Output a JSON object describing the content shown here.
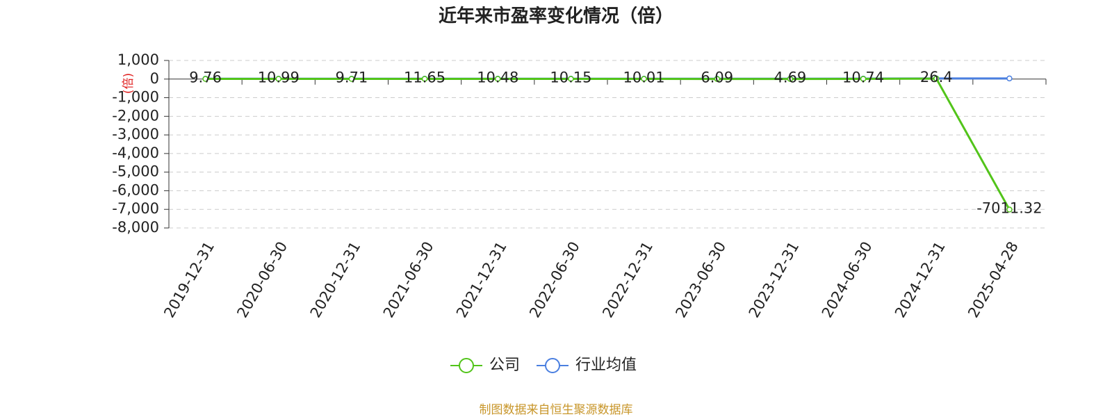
{
  "chart_data": {
    "type": "line",
    "title": "近年来市盈率变化情况（倍）",
    "y_label": "(倍)",
    "source": "制图数据来自恒生聚源数据库",
    "categories": [
      "2019-12-31",
      "2020-06-30",
      "2020-12-31",
      "2021-06-30",
      "2021-12-31",
      "2022-06-30",
      "2022-12-31",
      "2023-06-30",
      "2023-12-31",
      "2024-06-30",
      "2024-12-31",
      "2025-04-28"
    ],
    "series": [
      {
        "name": "公司",
        "color": "#52c41a",
        "values": [
          9.76,
          10.99,
          9.71,
          11.65,
          10.48,
          10.15,
          10.01,
          6.09,
          4.69,
          10.74,
          26.4,
          -7011.32
        ]
      },
      {
        "name": "行业均值",
        "color": "#4a7fe0",
        "values": [
          20,
          20,
          20,
          20,
          20,
          20,
          20,
          20,
          20,
          25,
          35,
          35
        ]
      }
    ],
    "ylim": [
      -8000,
      1000
    ],
    "yticks": [
      {
        "value": 1000,
        "label": "1,000"
      },
      0,
      {
        "value": -1000,
        "label": "-1,000"
      },
      {
        "value": -2000,
        "label": "-2,000"
      },
      {
        "value": -3000,
        "label": "-3,000"
      },
      {
        "value": -4000,
        "label": "-4,000"
      },
      {
        "value": -5000,
        "label": "-5,000"
      },
      {
        "value": -6000,
        "label": "-6,000"
      },
      {
        "value": -7000,
        "label": "-7,000"
      },
      {
        "value": -8000,
        "label": "-8,000"
      }
    ],
    "grid": true
  }
}
